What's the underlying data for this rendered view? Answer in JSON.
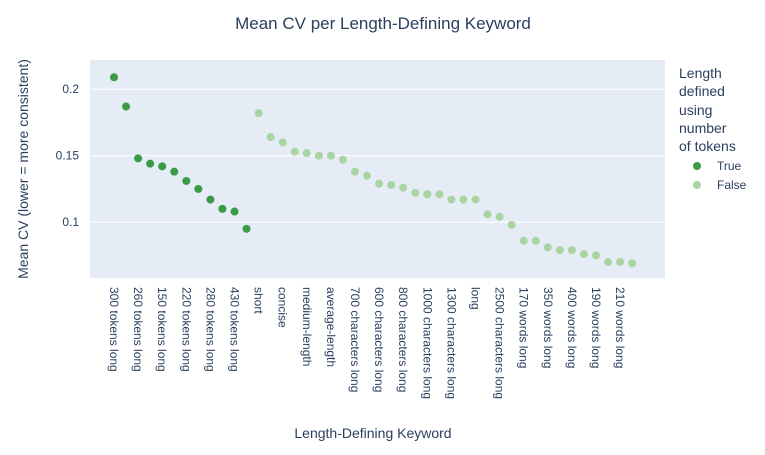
{
  "chart_data": {
    "type": "scatter",
    "title": "Mean CV per Length-Defining Keyword",
    "xlabel": "Length-Defining Keyword",
    "ylabel": "Mean CV (lower = more consistent)",
    "ylim": [
      0.058,
      0.222
    ],
    "yticks": [
      0.1,
      0.15,
      0.2
    ],
    "ytick_labels": [
      "0.1",
      "0.15",
      "0.2"
    ],
    "grid": true,
    "legend_position": "right",
    "legend_title": "Length defined using number of tokens",
    "colors": {
      "True": "#3a9a45",
      "False": "#a8d5a2",
      "plot_bg": "#e5ecf6",
      "text": "#2a3f5f"
    },
    "categories": [
      "300 tokens long",
      "c2",
      "260 tokens long",
      "c4",
      "150 tokens long",
      "c6",
      "220 tokens long",
      "c8",
      "280 tokens long",
      "c10",
      "430 tokens long",
      "c12",
      "short",
      "c14",
      "concise",
      "c16",
      "medium-length",
      "c18",
      "average-length",
      "c20",
      "700 characters long",
      "c22",
      "600 characters long",
      "c24",
      "800 characters long",
      "c26",
      "1000 characters long",
      "c28",
      "1300 characters long",
      "c30",
      "long",
      "c32",
      "2500 characters long",
      "c34",
      "170 words long",
      "c36",
      "350 words long",
      "c38",
      "400 words long",
      "c40",
      "190 words long",
      "c42",
      "210 words long",
      "c44"
    ],
    "tick_labels": [
      "300 tokens long",
      "260 tokens long",
      "150 tokens long",
      "220 tokens long",
      "280 tokens long",
      "430 tokens long",
      "short",
      "concise",
      "medium-length",
      "average-length",
      "700 characters long",
      "600 characters long",
      "800 characters long",
      "1000 characters long",
      "1300 characters long",
      "long",
      "2500 characters long",
      "170 words long",
      "350 words long",
      "400 words long",
      "190 words long",
      "210 words long"
    ],
    "series": [
      {
        "name": "True",
        "color": "#3a9a45",
        "values": [
          0.209,
          0.187,
          0.148,
          0.144,
          0.142,
          0.138,
          0.131,
          0.125,
          0.117,
          0.11,
          0.108,
          0.095,
          null,
          null,
          null,
          null,
          null,
          null,
          null,
          null,
          null,
          null,
          null,
          null,
          null,
          null,
          null,
          null,
          null,
          null,
          null,
          null,
          null,
          null,
          null,
          null,
          null,
          null,
          null,
          null,
          null,
          null,
          null,
          null
        ]
      },
      {
        "name": "False",
        "color": "#a8d5a2",
        "values": [
          null,
          null,
          null,
          null,
          null,
          null,
          null,
          null,
          null,
          null,
          null,
          null,
          0.182,
          0.164,
          0.16,
          0.153,
          0.152,
          0.15,
          0.15,
          0.147,
          0.138,
          0.135,
          0.129,
          0.128,
          0.126,
          0.122,
          0.121,
          0.121,
          0.117,
          0.117,
          0.117,
          0.106,
          0.104,
          0.098,
          0.086,
          0.086,
          0.081,
          0.079,
          0.079,
          0.076,
          0.075,
          0.07,
          0.07,
          0.069
        ]
      }
    ]
  }
}
